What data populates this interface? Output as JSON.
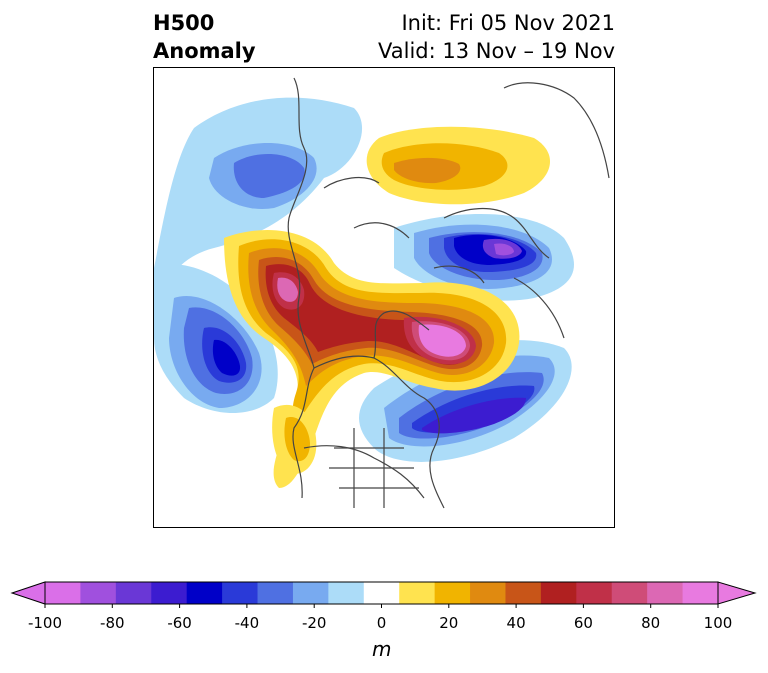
{
  "title": {
    "left_line1": "H500",
    "left_line2": "Anomaly",
    "right_line1": "Init: Fri 05 Nov 2021",
    "right_line2": "Valid: 13 Nov – 19 Nov"
  },
  "colorbar": {
    "unit": "m",
    "ticks": [
      "-100",
      "-80",
      "-60",
      "-40",
      "-20",
      "0",
      "20",
      "40",
      "60",
      "80",
      "100"
    ],
    "levels": [
      -100,
      -90,
      -80,
      -70,
      -60,
      -50,
      -40,
      -30,
      -20,
      -10,
      10,
      20,
      30,
      40,
      50,
      60,
      70,
      80,
      90,
      100
    ],
    "colors": [
      "#da6fe8",
      "#a050de",
      "#6a37d6",
      "#3c1cd0",
      "#0000c8",
      "#2a3ad8",
      "#4f70e2",
      "#78aaf0",
      "#acdcf8",
      "#ffffff",
      "#ffe34f",
      "#f1b400",
      "#e08a10",
      "#c85518",
      "#b02020",
      "#c03048",
      "#cf4c78",
      "#dc68b4",
      "#e87ae0"
    ],
    "extend_low_color": "#da6fe8",
    "extend_high_color": "#e87ae0"
  },
  "map": {
    "projection": "north-polar stereographic",
    "region": "Northern Hemisphere (North America / Arctic)"
  }
}
